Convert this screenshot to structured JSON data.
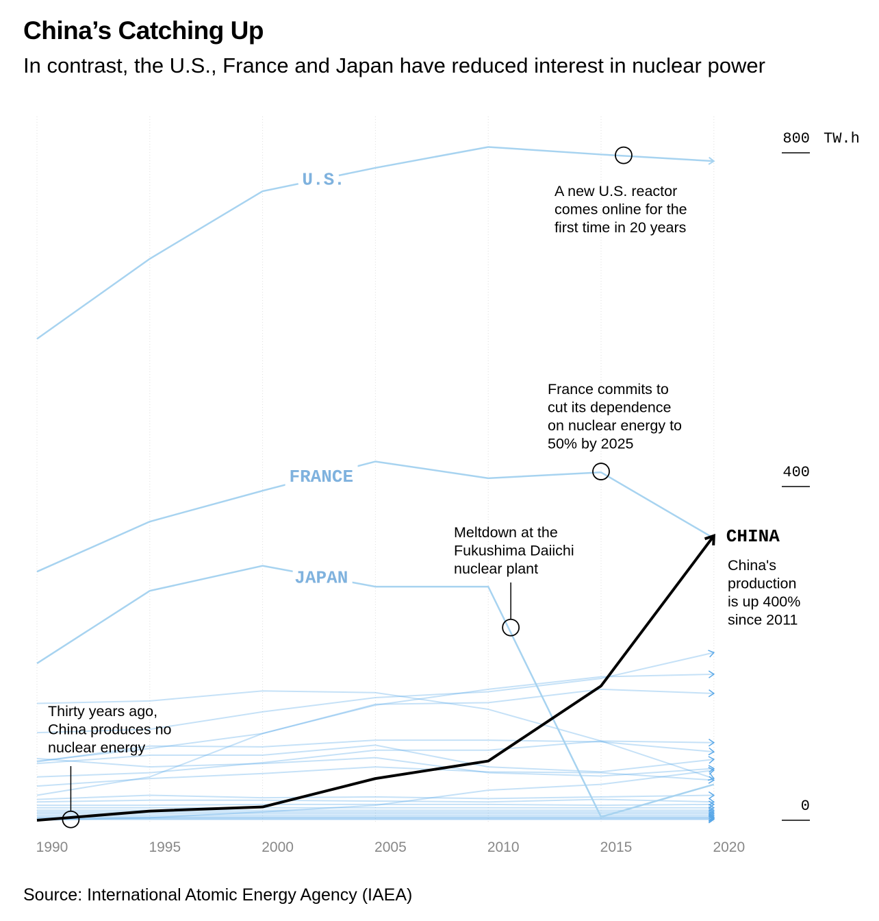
{
  "header": {
    "title": "China’s Catching Up",
    "subtitle": "In contrast, the U.S., France and Japan have reduced interest in nuclear power"
  },
  "footer": {
    "source": "Source: International Atomic Energy Agency (IAEA)"
  },
  "colors": {
    "background_lines": "#5aa8e8",
    "highlight_lines": "#a7d3f0",
    "china": "#000000",
    "country_label": "#7fb2de",
    "grid": "#dcdcdc"
  },
  "chart_data": {
    "type": "line",
    "x": [
      1990,
      1995,
      2000,
      2005,
      2010,
      2015,
      2020
    ],
    "xlabel": "",
    "ylabel": "",
    "y_unit": "TW.h",
    "ylim": [
      0,
      800
    ],
    "y_ticks": [
      {
        "value": 0,
        "label": "0"
      },
      {
        "value": 400,
        "label": "400"
      },
      {
        "value": 800,
        "label": "800"
      }
    ],
    "y_unit_label": "TW.h",
    "x_tick_labels": [
      "1990",
      "1995",
      "2000",
      "2005",
      "2010",
      "2015",
      "2020"
    ],
    "grid": "vertical",
    "highlighted_series": [
      {
        "name": "U.S.",
        "label": "U.S.",
        "values": [
          577,
          673,
          754,
          782,
          807,
          798,
          790
        ]
      },
      {
        "name": "FRANCE",
        "label": "FRANCE",
        "values": [
          298,
          358,
          395,
          430,
          410,
          417,
          338
        ]
      },
      {
        "name": "JAPAN",
        "label": "JAPAN",
        "values": [
          188,
          275,
          305,
          280,
          280,
          4,
          43
        ]
      },
      {
        "name": "CHINA",
        "label": "CHINA",
        "values": [
          0,
          11,
          16,
          50,
          71,
          161,
          341
        ]
      }
    ],
    "other_series": [
      {
        "values": [
          140,
          143,
          155,
          153,
          133,
          95,
          50
        ]
      },
      {
        "values": [
          105,
          109,
          130,
          147,
          154,
          170,
          201
        ]
      },
      {
        "values": [
          71,
          86,
          104,
          138,
          157,
          172,
          175
        ]
      },
      {
        "values": [
          30,
          52,
          104,
          139,
          141,
          157,
          152
        ]
      },
      {
        "values": [
          70,
          89,
          88,
          96,
          96,
          94,
          82
        ]
      },
      {
        "values": [
          52,
          57,
          69,
          84,
          84,
          95,
          93
        ]
      },
      {
        "values": [
          68,
          78,
          78,
          90,
          64,
          58,
          73
        ]
      },
      {
        "values": [
          74,
          64,
          68,
          75,
          57,
          53,
          62
        ]
      },
      {
        "values": [
          41,
          50,
          56,
          64,
          58,
          57,
          48
        ]
      },
      {
        "values": [
          0,
          3,
          10,
          18,
          36,
          43,
          60
        ]
      },
      {
        "values": [
          25,
          30,
          27,
          28,
          26,
          28,
          30
        ]
      },
      {
        "values": [
          22,
          24,
          24,
          23,
          22,
          25,
          22
        ]
      },
      {
        "values": [
          18,
          18,
          19,
          19,
          19,
          18,
          19
        ]
      },
      {
        "values": [
          15,
          15,
          15,
          15,
          15,
          15,
          15
        ]
      },
      {
        "values": [
          12,
          12,
          12,
          12,
          12,
          12,
          12
        ]
      },
      {
        "values": [
          10,
          10,
          10,
          10,
          10,
          10,
          10
        ]
      },
      {
        "values": [
          8,
          8,
          8,
          8,
          8,
          8,
          8
        ]
      },
      {
        "values": [
          6,
          6,
          6,
          6,
          6,
          6,
          6
        ]
      },
      {
        "values": [
          4,
          4,
          4,
          4,
          4,
          4,
          4
        ]
      },
      {
        "values": [
          3,
          3,
          3,
          3,
          3,
          3,
          3
        ]
      },
      {
        "values": [
          2,
          2,
          2,
          2,
          2,
          2,
          2
        ]
      },
      {
        "values": [
          1,
          1,
          1,
          1,
          1,
          1,
          1
        ]
      }
    ],
    "annotations": [
      {
        "id": "us",
        "year": 2016,
        "value": 797,
        "lines": [
          "A new U.S. reactor",
          "comes online for the",
          "first time in 20 years"
        ]
      },
      {
        "id": "france",
        "year": 2015,
        "value": 418,
        "lines": [
          "France commits to",
          "cut its dependence",
          "on nuclear energy to",
          "50% by 2025"
        ]
      },
      {
        "id": "japan",
        "year": 2011,
        "value": 231,
        "lines": [
          "Meltdown at the",
          "Fukushima Daiichi",
          "nuclear plant"
        ]
      },
      {
        "id": "china1990",
        "year": 1991.5,
        "value": 1,
        "lines": [
          "Thirty years ago,",
          "China produces no",
          "nuclear energy"
        ]
      },
      {
        "id": "china2020",
        "lines": [
          "China's",
          "production",
          "is up 400%",
          "since 2011"
        ]
      }
    ]
  }
}
